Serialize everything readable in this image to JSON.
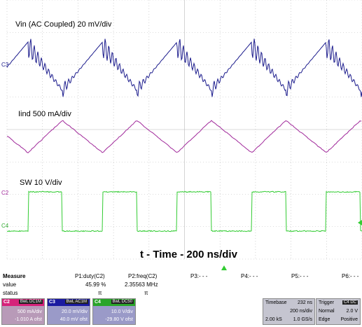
{
  "scope": {
    "channel_labels": {
      "vin": "Vin (AC Coupled) 20 mV/div",
      "iind": "Iind 500 mA/div",
      "sw": "SW 10 V/div"
    },
    "time_label": "t - Time - 200 ns/div",
    "markers": {
      "c3": "C3",
      "c2": "C2",
      "c4": "C4"
    },
    "colors": {
      "vin": "#1b1b8c",
      "iind": "#a0289a",
      "sw": "#33cc33",
      "grid": "#b8b8b8",
      "trigger": "#33cc33"
    }
  },
  "chart_data": {
    "type": "line",
    "x_divisions": 10,
    "y_divisions": 8,
    "title": "",
    "xlabel": "t - Time - 200 ns/div",
    "series": [
      {
        "name": "Vin (AC Coupled) 20 mV/div",
        "shape": "sawtooth-ringing",
        "period_div": 2.1,
        "amplitude_div": 1.1
      },
      {
        "name": "Iind 500 mA/div",
        "shape": "triangle",
        "period_div": 2.1,
        "amplitude_div": 0.5
      },
      {
        "name": "SW 10 V/div",
        "shape": "square",
        "period_div": 2.1,
        "duty": 0.4599,
        "amplitude_div": 1.2
      }
    ]
  },
  "measure": {
    "title": "Measure",
    "rows": [
      "value",
      "status"
    ],
    "cols": [
      {
        "head": "P1:duty(C2)",
        "value": "45.99 %",
        "status": "π"
      },
      {
        "head": "P2:freq(C2)",
        "value": "2.35563 MHz",
        "status": "π"
      },
      {
        "head": "P3:- - -",
        "value": "",
        "status": ""
      },
      {
        "head": "P4:- - -",
        "value": "",
        "status": ""
      },
      {
        "head": "P5:- - -",
        "value": "",
        "status": ""
      },
      {
        "head": "P6:- - -",
        "value": "",
        "status": ""
      }
    ]
  },
  "channels": [
    {
      "name": "C2",
      "bw": "BwL DC1M",
      "scale": "500 mA/div",
      "offset": "-1.010 A ofst",
      "color": "#d6227a",
      "body": "#b89ab8"
    },
    {
      "name": "C3",
      "bw": "BwL AC1M",
      "scale": "20.0 mV/div",
      "offset": "40.0 mV ofst",
      "color": "#1a1aa0",
      "body": "#9a9ac8"
    },
    {
      "name": "C4",
      "bw": "BwL DC50",
      "scale": "10.0 V/div",
      "offset": "-29.80 V ofst",
      "color": "#2aa52a",
      "body": "#9a9ac8"
    }
  ],
  "timebase": {
    "label": "Timebase",
    "delay": "232 ns",
    "scale": "200 ns/div",
    "samples": "2.00 kS",
    "rate": "1.0 GS/s"
  },
  "trigger": {
    "label": "Trigger",
    "chan": "C4 DC",
    "mode": "Normal",
    "level": "2.0 V",
    "type": "Edge",
    "slope": "Positive"
  }
}
